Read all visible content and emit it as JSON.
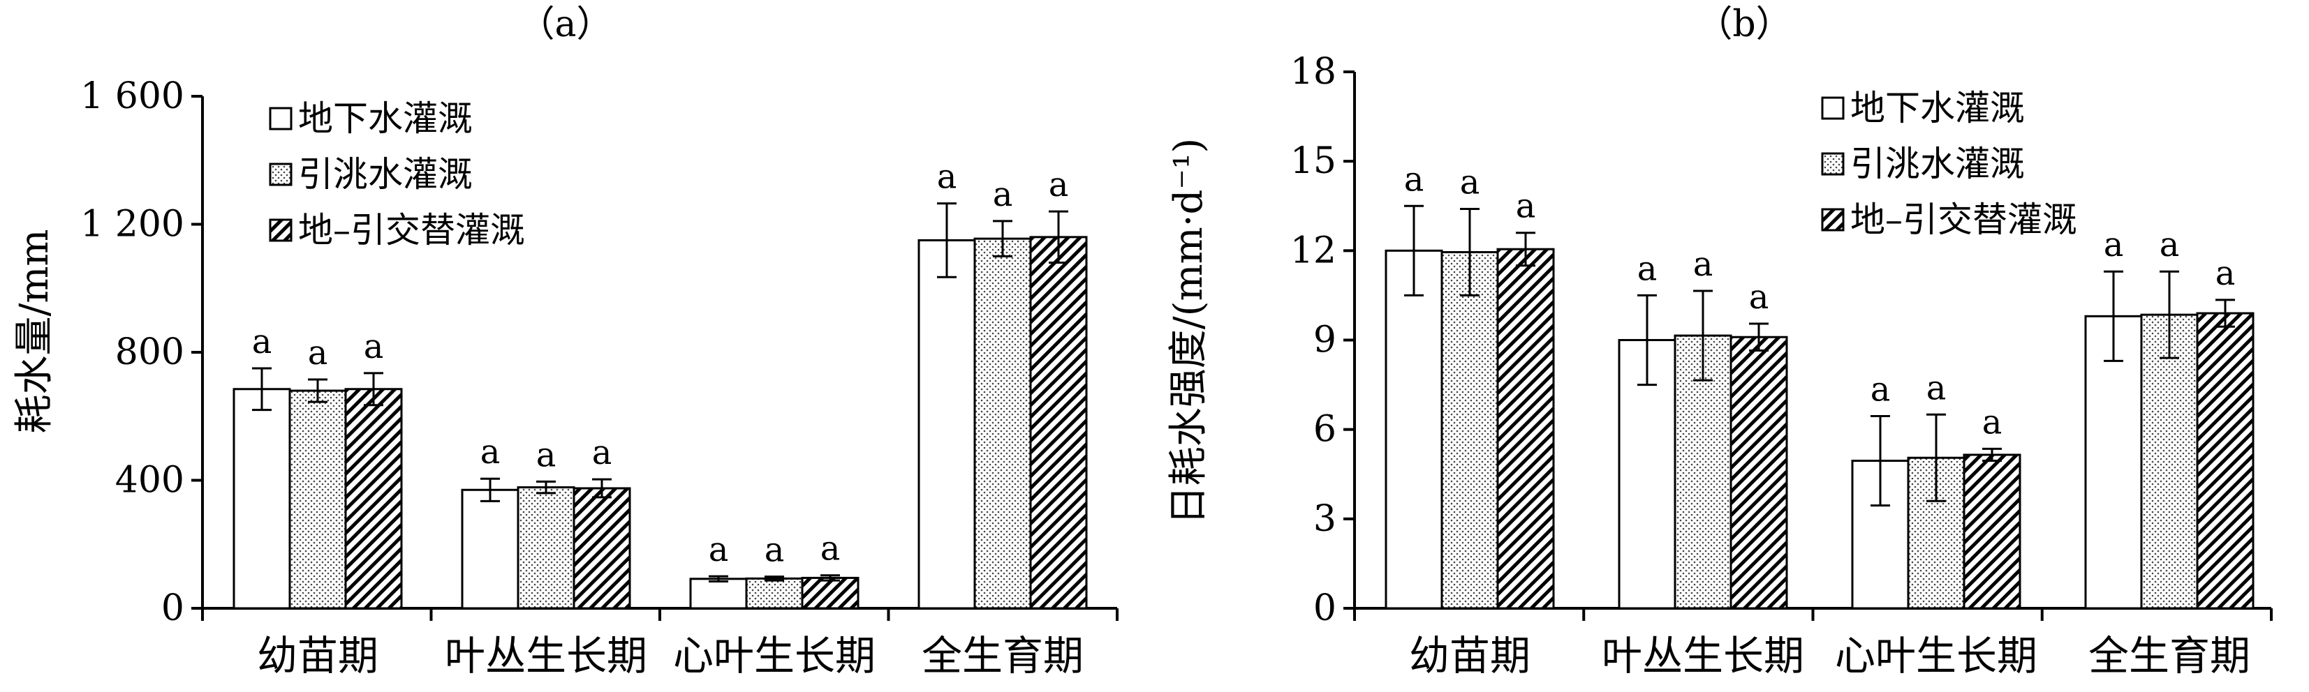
{
  "legend": {
    "items": [
      {
        "label": "地下水灌溉",
        "pattern": "white"
      },
      {
        "label": "引洮水灌溉",
        "pattern": "dots"
      },
      {
        "label": "地–引交替灌溉",
        "pattern": "hatch"
      }
    ]
  },
  "chart_data": [
    {
      "type": "bar",
      "panel_label": "（a）",
      "ylabel": "耗水量/mm",
      "xlabel": "",
      "ylim": [
        0,
        1600
      ],
      "yticks": [
        0,
        400,
        800,
        1200,
        1600
      ],
      "ytick_labels": [
        "0",
        "400",
        "800",
        "1 200",
        "1 600"
      ],
      "categories": [
        "幼苗期",
        "叶丛生长期",
        "心叶生长期",
        "全生育期"
      ],
      "series": [
        {
          "name": "地下水灌溉",
          "values": [
            685,
            370,
            92,
            1150
          ],
          "errors": [
            65,
            35,
            8,
            115
          ],
          "significance": [
            "a",
            "a",
            "a",
            "a"
          ]
        },
        {
          "name": "引洮水灌溉",
          "values": [
            680,
            378,
            93,
            1155
          ],
          "errors": [
            35,
            18,
            6,
            55
          ],
          "significance": [
            "a",
            "a",
            "a",
            "a"
          ]
        },
        {
          "name": "地–引交替灌溉",
          "values": [
            685,
            375,
            95,
            1160
          ],
          "errors": [
            50,
            28,
            8,
            80
          ],
          "significance": [
            "a",
            "a",
            "a",
            "a"
          ]
        }
      ],
      "grid": false,
      "legend_position": "top-left"
    },
    {
      "type": "bar",
      "panel_label": "（b）",
      "ylabel": "日耗水强度/(mm·d⁻¹)",
      "xlabel": "",
      "ylim": [
        0,
        18
      ],
      "yticks": [
        0,
        3,
        6,
        9,
        12,
        15,
        18
      ],
      "ytick_labels": [
        "0",
        "3",
        "6",
        "9",
        "12",
        "15",
        "18"
      ],
      "categories": [
        "幼苗期",
        "叶丛生长期",
        "心叶生长期",
        "全生育期"
      ],
      "series": [
        {
          "name": "地下水灌溉",
          "values": [
            12.0,
            9.0,
            4.95,
            9.8
          ],
          "errors": [
            1.5,
            1.5,
            1.5,
            1.5
          ],
          "significance": [
            "a",
            "a",
            "a",
            "a"
          ]
        },
        {
          "name": "引洮水灌溉",
          "values": [
            11.95,
            9.15,
            5.05,
            9.85
          ],
          "errors": [
            1.45,
            1.5,
            1.45,
            1.45
          ],
          "significance": [
            "a",
            "a",
            "a",
            "a"
          ]
        },
        {
          "name": "地–引交替灌溉",
          "values": [
            12.05,
            9.1,
            5.15,
            9.9
          ],
          "errors": [
            0.55,
            0.45,
            0.2,
            0.45
          ],
          "significance": [
            "a",
            "a",
            "a",
            "a"
          ]
        }
      ],
      "grid": false,
      "legend_position": "top-right"
    }
  ]
}
